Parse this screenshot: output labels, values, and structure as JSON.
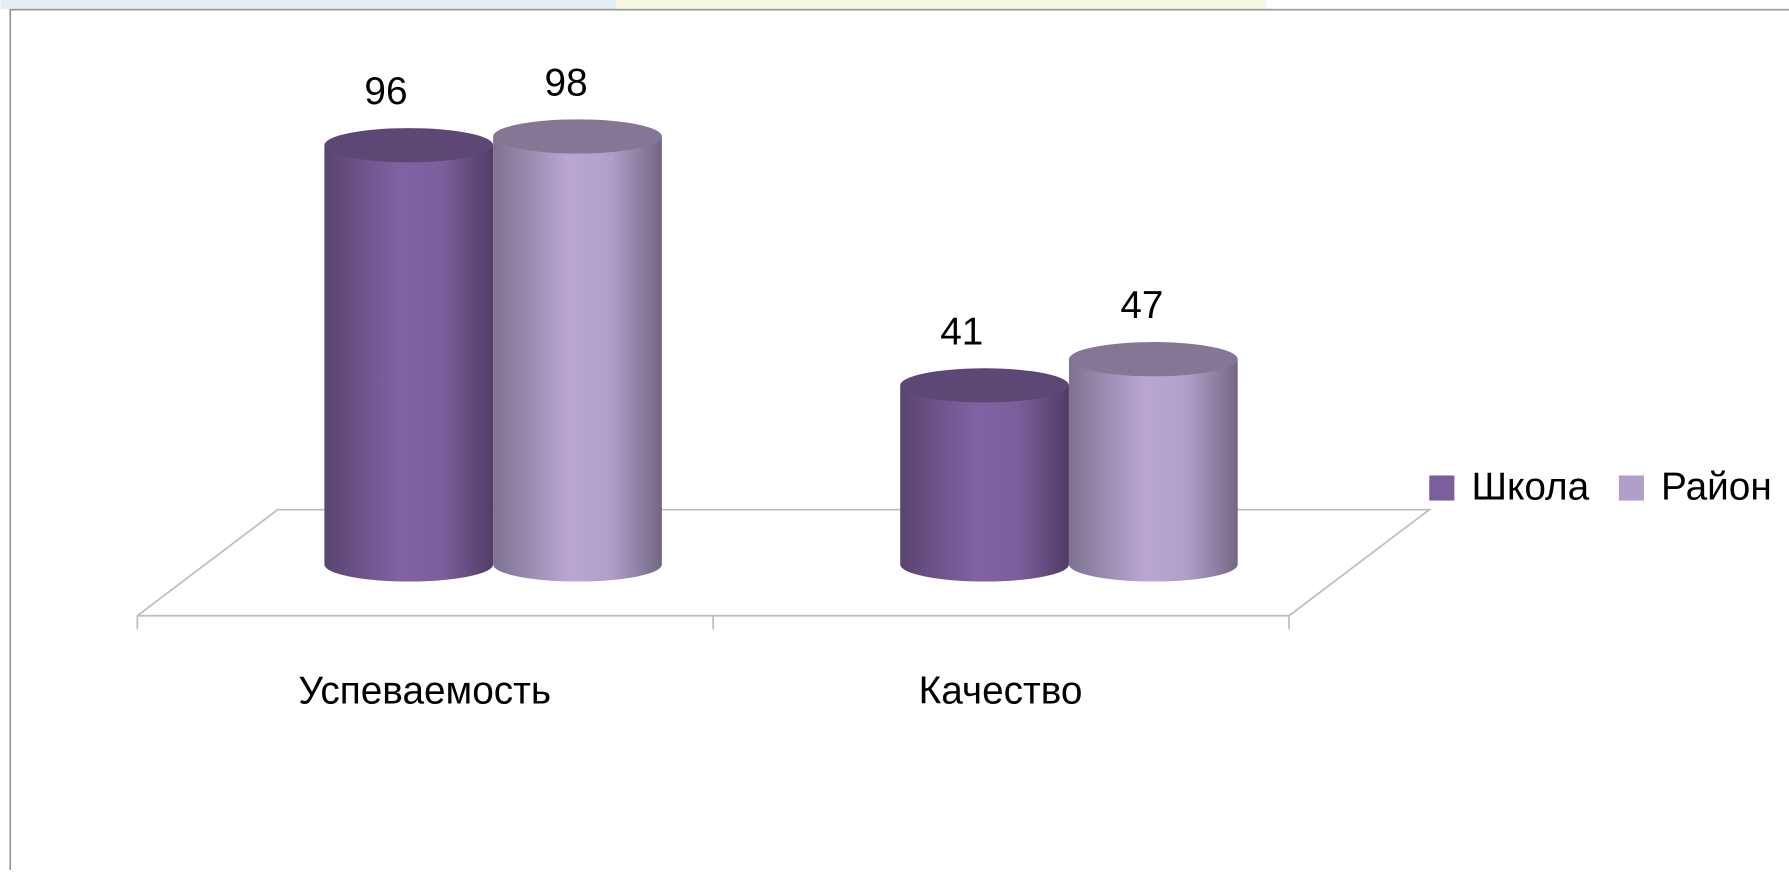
{
  "chart_data": {
    "type": "bar",
    "categories": [
      "Успеваемость",
      "Качество"
    ],
    "series": [
      {
        "name": "Школа",
        "color": "#7b5e9c",
        "values": [
          96,
          41
        ]
      },
      {
        "name": "Район",
        "color": "#b09fc8",
        "values": [
          98,
          47
        ]
      }
    ],
    "legend": "right"
  }
}
